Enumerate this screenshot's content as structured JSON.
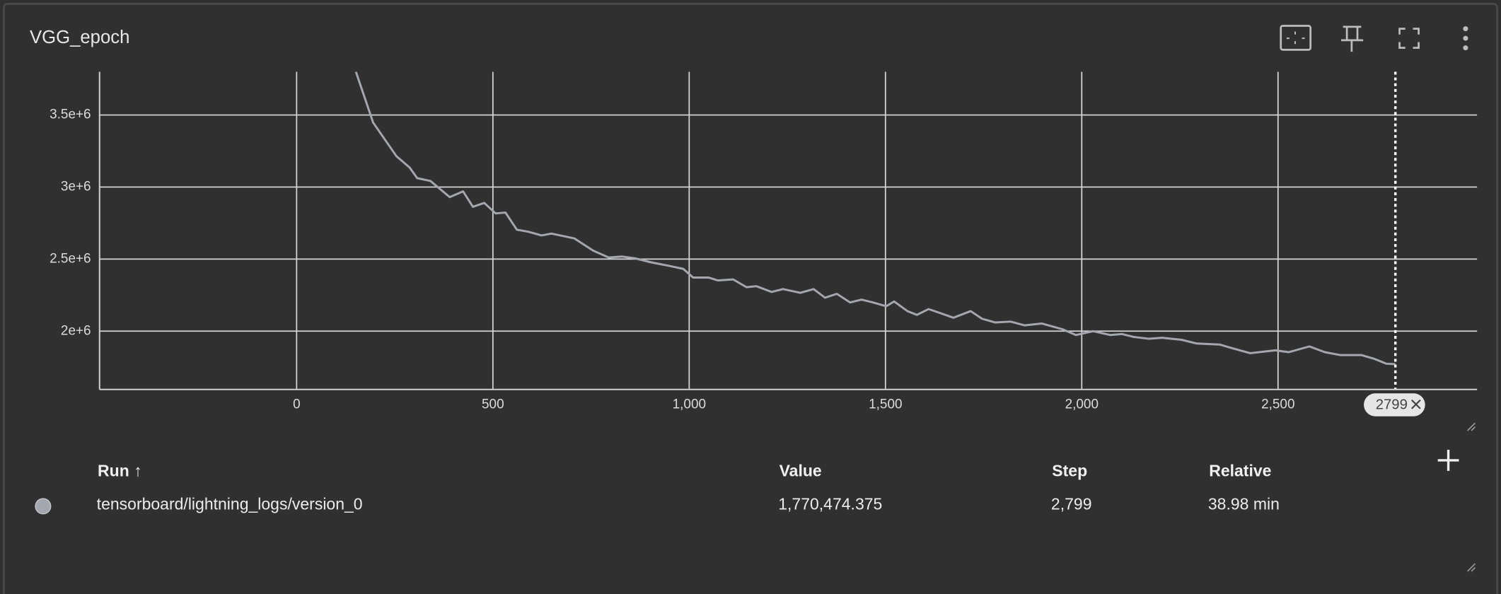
{
  "chart_data": {
    "type": "line",
    "title": "VGG_epoch",
    "x": [
      151,
      195,
      254,
      288,
      307,
      341,
      390,
      424,
      449,
      478,
      507,
      532,
      561,
      590,
      624,
      649,
      707,
      756,
      795,
      829,
      863,
      902,
      951,
      985,
      1010,
      1049,
      1073,
      1112,
      1146,
      1171,
      1210,
      1239,
      1283,
      1317,
      1346,
      1376,
      1410,
      1439,
      1468,
      1502,
      1522,
      1556,
      1580,
      1610,
      1639,
      1673,
      1717,
      1746,
      1780,
      1819,
      1854,
      1898,
      1951,
      1985,
      2029,
      2073,
      2102,
      2132,
      2171,
      2205,
      2254,
      2293,
      2351,
      2385,
      2429,
      2493,
      2527,
      2580,
      2619,
      2658,
      2712,
      2746,
      2776,
      2799
    ],
    "series": [
      {
        "color": "#a3a7ae",
        "values": [
          3800000,
          3447000,
          3215000,
          3135000,
          3062000,
          3042000,
          2930000,
          2970000,
          2863000,
          2890000,
          2817000,
          2823000,
          2704000,
          2690000,
          2664000,
          2677000,
          2644000,
          2558000,
          2511000,
          2518000,
          2505000,
          2478000,
          2452000,
          2432000,
          2372000,
          2372000,
          2352000,
          2359000,
          2305000,
          2312000,
          2272000,
          2292000,
          2266000,
          2292000,
          2232000,
          2259000,
          2199000,
          2219000,
          2199000,
          2173000,
          2206000,
          2139000,
          2113000,
          2153000,
          2126000,
          2093000,
          2139000,
          2086000,
          2060000,
          2066000,
          2040000,
          2053000,
          2013000,
          1973000,
          2000000,
          1973000,
          1980000,
          1960000,
          1947000,
          1954000,
          1940000,
          1914000,
          1907000,
          1880000,
          1847000,
          1867000,
          1854000,
          1894000,
          1854000,
          1834000,
          1834000,
          1807000,
          1774000,
          1770474.375
        ]
      }
    ],
    "xlim": [
      -502,
      3007
    ],
    "xticks": [
      0,
      500,
      {
        "value": 1000,
        "label": "1,000"
      },
      {
        "value": 1500,
        "label": "1,500"
      },
      {
        "value": 2000,
        "label": "2,000"
      },
      {
        "value": 2500,
        "label": "2,500"
      }
    ],
    "ylim": [
      1595000,
      3800000
    ],
    "yticks": [
      {
        "value": 2000000,
        "label": "2e+6"
      },
      {
        "value": 2500000,
        "label": "2.5e+6"
      },
      {
        "value": 3000000,
        "label": "3e+6"
      },
      {
        "value": 3500000,
        "label": "3.5e+6"
      }
    ],
    "grid": true,
    "cursor_step": 2799
  },
  "table": {
    "headers": [
      "Run ↑",
      "Value",
      "Step",
      "Relative"
    ],
    "rows": [
      [
        "tensorboard/lightning_logs/version_0",
        "1,770,474.375",
        "2,799",
        "38.98 min"
      ]
    ]
  }
}
